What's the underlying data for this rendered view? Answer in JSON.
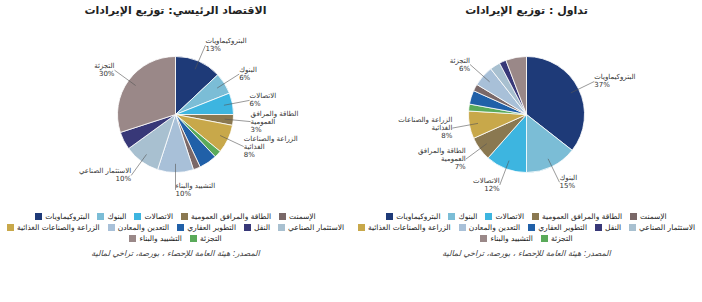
{
  "chart_data": [
    {
      "type": "pie",
      "title": "الاقتصاد الرئيسي: توزيع الإيرادات",
      "categories": [
        "البتروكيماويات",
        "البنوك",
        "الاتصالات",
        "الطاقة والمرافق\nالعمومية",
        "الزراعة والصناعات\nالغذائية",
        null,
        null,
        null,
        "التشييد والبناء",
        "الاستثمار الصناعي",
        null,
        "التجزئة"
      ],
      "values": [
        13,
        6,
        6,
        3,
        8,
        2,
        5,
        2,
        10,
        10,
        5,
        30
      ],
      "value_labels": [
        "13%",
        "6%",
        "6%",
        "3%",
        "8%",
        null,
        null,
        null,
        "10%",
        "10%",
        null,
        "30%"
      ],
      "colors": [
        "#1e3a78",
        "#7bbdd6",
        "#3db5e0",
        "#8a7850",
        "#c8a84a",
        "#5aaa5a",
        "#2060a8",
        "#7a6868",
        "#a8c0d8",
        "#a8c0d0",
        "#383878",
        "#9a8888"
      ],
      "data_labels": true,
      "legend": "bottom",
      "legend_items": [
        {
          "name": "البتروكيماويات",
          "color": "#1e3a78"
        },
        {
          "name": "البنوك",
          "color": "#7bbdd6"
        },
        {
          "name": "الاتصالات",
          "color": "#3db5e0"
        },
        {
          "name": "الطاقة والمرافق العمومية",
          "color": "#8a7850"
        },
        {
          "name": "الإسمنت",
          "color": "#7a6868"
        },
        {
          "name": "الزراعة والصناعات الغذائية",
          "color": "#c8a84a"
        },
        {
          "name": "التعدين والمعادن",
          "color": "#a8c0d8"
        },
        {
          "name": "التطوير العقاري",
          "color": "#2060a8"
        },
        {
          "name": "النقل",
          "color": "#383878"
        },
        {
          "name": "الاستثمار الصناعي",
          "color": "#a8c0d0"
        },
        {
          "name": "التشييد والبناء",
          "color": "#9a8888"
        },
        {
          "name": "التجزئة",
          "color": "#5aaa5a"
        }
      ],
      "source": "المصدر: هيئة العامة للإحصاء ، بورصة، تراخي لمالية"
    },
    {
      "type": "pie",
      "title": "تداول : توزيع الإيرادات",
      "categories": [
        "البتروكيماويات",
        "البنوك",
        "الاتصالات",
        "الطاقة والمرافق\nالعمومية",
        "الزراعة والصناعات\nالغذائية",
        null,
        null,
        null,
        "التجزئة",
        null,
        null,
        null
      ],
      "values": [
        37,
        15,
        12,
        7,
        8,
        2,
        4,
        2,
        6,
        3,
        2,
        6
      ],
      "value_labels": [
        "37%",
        "15%",
        "12%",
        "7%",
        "8%",
        null,
        null,
        null,
        "6%",
        null,
        null,
        null
      ],
      "colors": [
        "#1e3a78",
        "#7bbdd6",
        "#3db5e0",
        "#8a7850",
        "#c8a84a",
        "#5aaa5a",
        "#2060a8",
        "#7a6868",
        "#a8c0d8",
        "#a8c0d0",
        "#383878",
        "#9a8888"
      ],
      "data_labels": true,
      "legend": "bottom",
      "legend_items": [
        {
          "name": "البتروكيماويات",
          "color": "#1e3a78"
        },
        {
          "name": "البنوك",
          "color": "#7bbdd6"
        },
        {
          "name": "الاتصالات",
          "color": "#3db5e0"
        },
        {
          "name": "الطاقة والمرافق العمومية",
          "color": "#8a7850"
        },
        {
          "name": "الإسمنت",
          "color": "#7a6868"
        },
        {
          "name": "الزراعة والصناعات الغذائية",
          "color": "#c8a84a"
        },
        {
          "name": "التعدين والمعادن",
          "color": "#a8c0d8"
        },
        {
          "name": "التطوير العقاري",
          "color": "#2060a8"
        },
        {
          "name": "النقل",
          "color": "#383878"
        },
        {
          "name": "الاستثمار الصناعي",
          "color": "#a8c0d0"
        },
        {
          "name": "التشييد والبناء",
          "color": "#9a8888"
        },
        {
          "name": "التجزئة",
          "color": "#5aaa5a"
        }
      ],
      "source": "المصدر: هيئة العامة للإحصاء ، بورصة، تراخي لمالية"
    }
  ]
}
